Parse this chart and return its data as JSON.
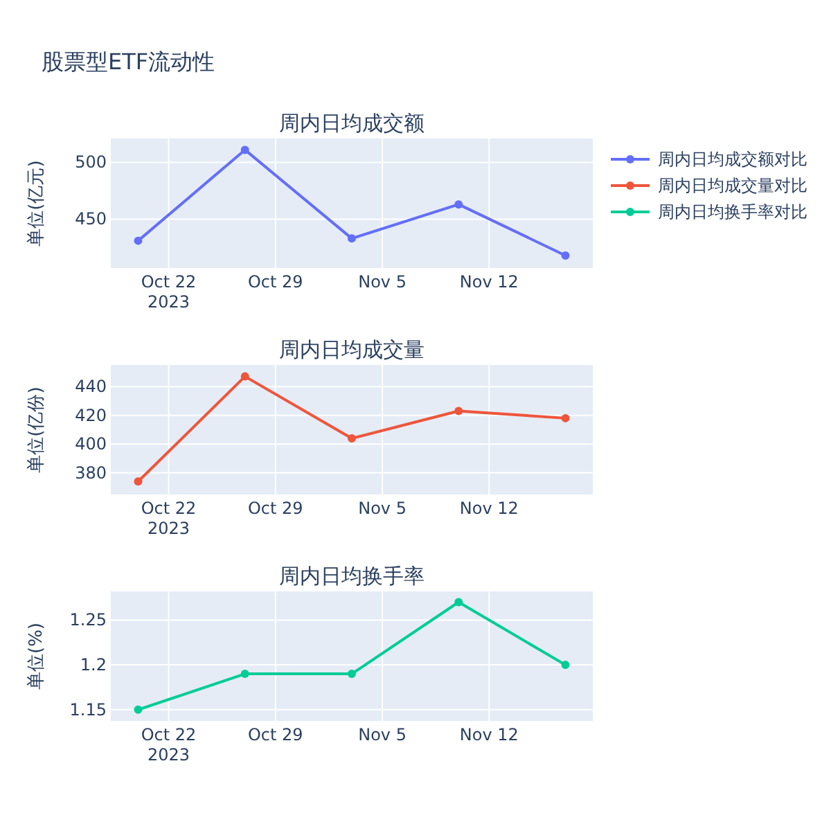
{
  "chart_data": [
    {
      "type": "line",
      "title": "股票型ETF流动性",
      "subtitle": "周内日均成交额",
      "ylabel": "单位(亿元)",
      "x": [
        "2023-10-20",
        "2023-10-27",
        "2023-11-03",
        "2023-11-10",
        "2023-11-17"
      ],
      "series": [
        {
          "name": "周内日均成交额对比",
          "color": "#636efa",
          "values": [
            431,
            511,
            433,
            463,
            418
          ]
        }
      ],
      "xlim": [
        "2023-10-18T05:00",
        "2023-11-18T19:00"
      ],
      "xticks": [
        {
          "value": "2023-10-22",
          "label": "Oct 22\n2023"
        },
        {
          "value": "2023-10-29",
          "label": "Oct 29"
        },
        {
          "value": "2023-11-05",
          "label": "Nov 5"
        },
        {
          "value": "2023-11-12",
          "label": "Nov 12"
        }
      ],
      "ylim": [
        407,
        521
      ],
      "yticks": [
        450,
        500
      ],
      "grid": true,
      "marker": "circle",
      "legend": "top right"
    },
    {
      "type": "line",
      "subtitle": "周内日均成交量",
      "ylabel": "单位(亿份)",
      "x": [
        "2023-10-20",
        "2023-10-27",
        "2023-11-03",
        "2023-11-10",
        "2023-11-17"
      ],
      "series": [
        {
          "name": "周内日均成交量对比",
          "color": "#ef553b",
          "values": [
            374,
            447,
            404,
            423,
            418
          ]
        }
      ],
      "xlim": [
        "2023-10-18T05:00",
        "2023-11-18T19:00"
      ],
      "xticks": [
        {
          "value": "2023-10-22",
          "label": "Oct 22\n2023"
        },
        {
          "value": "2023-10-29",
          "label": "Oct 29"
        },
        {
          "value": "2023-11-05",
          "label": "Nov 5"
        },
        {
          "value": "2023-11-12",
          "label": "Nov 12"
        }
      ],
      "ylim": [
        365,
        455
      ],
      "yticks": [
        380,
        400,
        420,
        440
      ],
      "grid": true,
      "marker": "circle",
      "legend": "top right"
    },
    {
      "type": "line",
      "subtitle": "周内日均换手率",
      "ylabel": "单位(%)",
      "x": [
        "2023-10-20",
        "2023-10-27",
        "2023-11-03",
        "2023-11-10",
        "2023-11-17"
      ],
      "series": [
        {
          "name": "周内日均换手率对比",
          "color": "#00cc96",
          "values": [
            1.15,
            1.19,
            1.19,
            1.27,
            1.2
          ]
        }
      ],
      "xlim": [
        "2023-10-18T05:00",
        "2023-11-18T19:00"
      ],
      "xticks": [
        {
          "value": "2023-10-22",
          "label": "Oct 22\n2023"
        },
        {
          "value": "2023-10-29",
          "label": "Oct 29"
        },
        {
          "value": "2023-11-05",
          "label": "Nov 5"
        },
        {
          "value": "2023-11-12",
          "label": "Nov 12"
        }
      ],
      "ylim": [
        1.1375,
        1.282
      ],
      "yticks": [
        1.15,
        1.2,
        1.25
      ],
      "grid": true,
      "marker": "circle",
      "legend": "top right"
    }
  ]
}
